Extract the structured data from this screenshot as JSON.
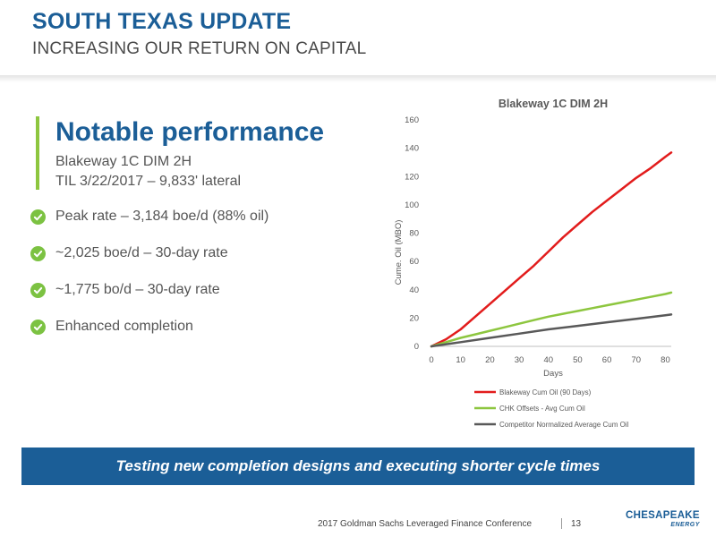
{
  "header": {
    "title": "SOUTH TEXAS UPDATE",
    "subtitle": "INCREASING OUR RETURN ON CAPITAL"
  },
  "highlight": {
    "headline": "Notable performance",
    "well_name": "Blakeway 1C DIM 2H",
    "well_til": "TIL 3/22/2017 – 9,833' lateral",
    "bullets": [
      "Peak rate – 3,184 boe/d (88% oil)",
      "~2,025 boe/d – 30-day rate",
      "~1,775 bo/d – 30-day rate",
      "Enhanced completion"
    ],
    "check_icon": "check-circle-icon"
  },
  "chart_data": {
    "type": "line",
    "title": "Blakeway 1C DIM 2H",
    "xlabel": "Days",
    "ylabel": "Cume. Oil (MBO)",
    "xlim": [
      0,
      82
    ],
    "ylim": [
      0,
      160
    ],
    "x_ticks": [
      0,
      10,
      20,
      30,
      40,
      50,
      60,
      70,
      80
    ],
    "y_ticks": [
      0,
      20,
      40,
      60,
      80,
      100,
      120,
      140,
      160
    ],
    "grid": false,
    "legend_position": "bottom",
    "series": [
      {
        "name": "Blakeway Cum Oil (90 Days)",
        "color": "#e21c1c",
        "x": [
          0,
          5,
          10,
          15,
          20,
          25,
          30,
          35,
          40,
          45,
          50,
          55,
          60,
          65,
          70,
          75,
          80,
          82
        ],
        "y": [
          0,
          5,
          12,
          21,
          30,
          39,
          48,
          57,
          67,
          77,
          86,
          95,
          103,
          111,
          119,
          126,
          134,
          137
        ]
      },
      {
        "name": "CHK Offsets - Avg Cum Oil",
        "color": "#8dc63f",
        "x": [
          0,
          5,
          10,
          15,
          20,
          25,
          30,
          35,
          40,
          45,
          50,
          55,
          60,
          65,
          70,
          75,
          80,
          82
        ],
        "y": [
          0,
          3,
          6,
          8.5,
          11,
          13.5,
          16,
          18.5,
          21,
          23,
          25,
          27,
          29,
          31,
          33,
          35,
          37,
          38
        ]
      },
      {
        "name": "Competitor Normalized Average Cum Oil",
        "color": "#595959",
        "x": [
          0,
          10,
          20,
          30,
          40,
          50,
          60,
          70,
          80,
          82
        ],
        "y": [
          0,
          3,
          6,
          9,
          12,
          14.5,
          17,
          19.5,
          22,
          22.5
        ]
      }
    ]
  },
  "banner": {
    "text": "Testing new completion designs and executing shorter cycle times"
  },
  "footer": {
    "conference": "2017 Goldman Sachs Leveraged Finance Conference",
    "page": "13",
    "logo_main": "CHESAPEAKE",
    "logo_sub": "ENERGY"
  },
  "colors": {
    "brand_blue": "#1b5e97",
    "accent_green": "#8dc63f",
    "text_gray": "#555555"
  }
}
